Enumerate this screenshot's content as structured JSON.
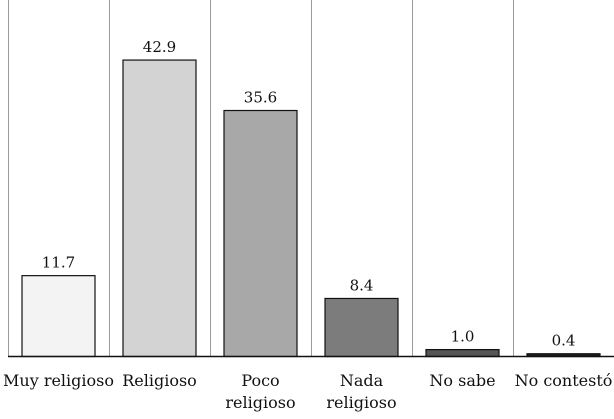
{
  "chart_data": {
    "type": "bar",
    "title": "",
    "xlabel": "",
    "ylabel": "",
    "categories": [
      [
        "Muy religioso"
      ],
      [
        "Religioso"
      ],
      [
        "Poco",
        "religioso"
      ],
      [
        "Nada",
        "religioso"
      ],
      [
        "No sabe"
      ],
      [
        "No contestó"
      ]
    ],
    "values": [
      11.7,
      42.9,
      35.6,
      8.4,
      1.0,
      0.4
    ],
    "data_labels": [
      "11.7",
      "42.9",
      "35.6",
      "8.4",
      "1.0",
      "0.4"
    ],
    "bar_colors": [
      "#f3f3f3",
      "#d3d3d3",
      "#a8a8a8",
      "#7c7c7c",
      "#555555",
      "#1e1e1e"
    ],
    "ylim": [
      0,
      50
    ],
    "grid": "vertical-separators",
    "legend": "none"
  }
}
